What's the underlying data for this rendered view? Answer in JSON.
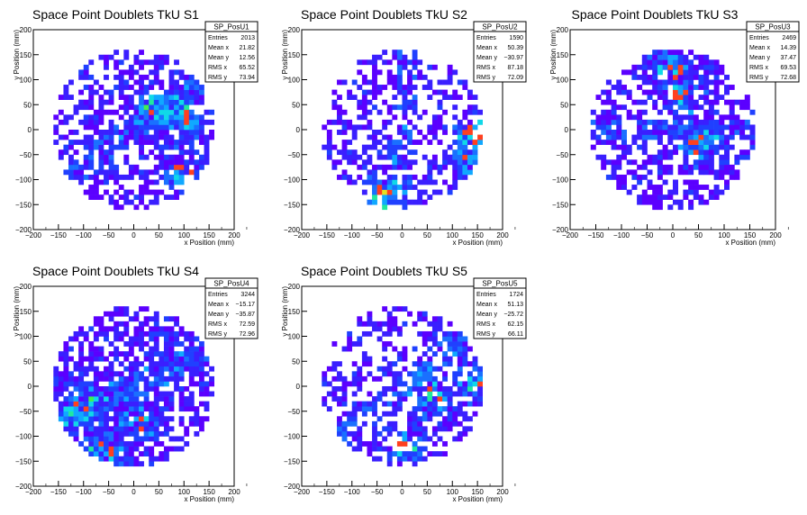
{
  "chart_data": [
    {
      "type": "heatmap",
      "title": "Space Point Doublets TkU S1",
      "xlabel": "x Position (mm)",
      "ylabel": "y Position (mm)",
      "xlim": [
        -200,
        200
      ],
      "ylim": [
        -200,
        200
      ],
      "x_ticks": [
        "−200",
        "−150",
        "−100",
        "−50",
        "0",
        "50",
        "100",
        "150",
        "200"
      ],
      "y_ticks": [
        "−200",
        "−150",
        "−100",
        "−50",
        "0",
        "50",
        "100",
        "150",
        "200"
      ],
      "stats": {
        "name": "SP_PosU1",
        "entries": "2013",
        "mean_x": "21.82",
        "mean_y": "12.56",
        "rms_x": "65.52",
        "rms_y": "73.94"
      },
      "hotspots": [
        {
          "x": 40,
          "y": 40
        },
        {
          "x": 100,
          "y": 20
        },
        {
          "x": 100,
          "y": -80
        }
      ],
      "band_angle_deg": 35,
      "density": 0.5
    },
    {
      "type": "heatmap",
      "title": "Space Point Doublets TkU S2",
      "xlabel": "x Position (mm)",
      "ylabel": "y Position (mm)",
      "xlim": [
        -200,
        200
      ],
      "ylim": [
        -200,
        200
      ],
      "x_ticks": [
        "−200",
        "−150",
        "−100",
        "−50",
        "0",
        "50",
        "100",
        "150",
        "200"
      ],
      "y_ticks": [
        "−200",
        "−150",
        "−100",
        "−50",
        "0",
        "50",
        "100",
        "150",
        "200"
      ],
      "stats": {
        "name": "SP_PosU2",
        "entries": "1590",
        "mean_x": "50.39",
        "mean_y": "−30.97",
        "rms_x": "87.18",
        "rms_y": "72.09"
      },
      "hotspots": [
        {
          "x": 140,
          "y": -10
        },
        {
          "x": 130,
          "y": -60
        },
        {
          "x": -40,
          "y": -130
        }
      ],
      "band_angle_deg": 85,
      "density": 0.42
    },
    {
      "type": "heatmap",
      "title": "Space Point Doublets TkU S3",
      "xlabel": "x Position (mm)",
      "ylabel": "y Position (mm)",
      "xlim": [
        -200,
        200
      ],
      "ylim": [
        -200,
        200
      ],
      "x_ticks": [
        "−200",
        "−150",
        "−100",
        "−50",
        "0",
        "50",
        "100",
        "150",
        "200"
      ],
      "y_ticks": [
        "−200",
        "−150",
        "−100",
        "−50",
        "0",
        "50",
        "100",
        "150",
        "200"
      ],
      "stats": {
        "name": "SP_PosU3",
        "entries": "2469",
        "mean_x": "14.39",
        "mean_y": "37.47",
        "rms_x": "69.53",
        "rms_y": "72.68"
      },
      "hotspots": [
        {
          "x": 0,
          "y": 120
        },
        {
          "x": 50,
          "y": -30
        },
        {
          "x": 20,
          "y": 70
        }
      ],
      "band_angle_deg": 0,
      "density": 0.55
    },
    {
      "type": "heatmap",
      "title": "Space Point Doublets TkU S4",
      "xlabel": "x Position (mm)",
      "ylabel": "y Position (mm)",
      "xlim": [
        -200,
        200
      ],
      "ylim": [
        -200,
        200
      ],
      "x_ticks": [
        "−200",
        "−150",
        "−100",
        "−50",
        "0",
        "50",
        "100",
        "150",
        "200"
      ],
      "y_ticks": [
        "−200",
        "−150",
        "−100",
        "−50",
        "0",
        "50",
        "100",
        "150",
        "200"
      ],
      "stats": {
        "name": "SP_PosU4",
        "entries": "3244",
        "mean_x": "−15.17",
        "mean_y": "−35.87",
        "rms_x": "72.59",
        "rms_y": "72.96"
      },
      "hotspots": [
        {
          "x": -100,
          "y": -40
        },
        {
          "x": 10,
          "y": -70
        },
        {
          "x": -60,
          "y": -130
        }
      ],
      "band_angle_deg": 25,
      "density": 0.62
    },
    {
      "type": "heatmap",
      "title": "Space Point Doublets TkU S5",
      "xlabel": "x Position (mm)",
      "ylabel": "y Position (mm)",
      "xlim": [
        -200,
        200
      ],
      "ylim": [
        -200,
        200
      ],
      "x_ticks": [
        "−200",
        "−150",
        "−100",
        "−50",
        "0",
        "50",
        "100",
        "150",
        "200"
      ],
      "y_ticks": [
        "−200",
        "−150",
        "−100",
        "−50",
        "0",
        "50",
        "100",
        "150",
        "200"
      ],
      "stats": {
        "name": "SP_PosU5",
        "entries": "1724",
        "mean_x": "51.13",
        "mean_y": "−25.72",
        "rms_x": "62.15",
        "rms_y": "66.11"
      },
      "hotspots": [
        {
          "x": 140,
          "y": 10
        },
        {
          "x": 60,
          "y": -20
        },
        {
          "x": 10,
          "y": -120
        }
      ],
      "band_angle_deg": 40,
      "density": 0.42
    }
  ],
  "stat_labels": {
    "entries": "Entries",
    "mean_x": "Mean x",
    "mean_y": "Mean y",
    "rms_x": "RMS x",
    "rms_y": "RMS y"
  }
}
